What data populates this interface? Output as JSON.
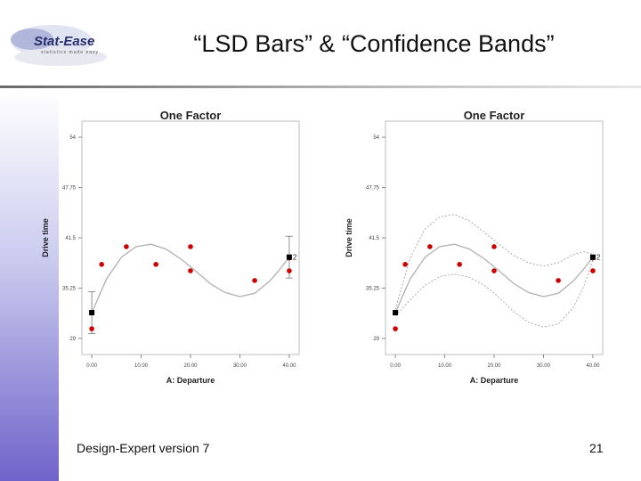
{
  "slide": {
    "title": "“LSD Bars” & “Confidence Bands”",
    "footer": "Design-Expert version 7",
    "page_number": "21"
  },
  "logo": {
    "wordmark": "Stat-Ease",
    "tagline": "statistics made easy"
  },
  "colors": {
    "sidebar_bottom": "#6f63c9",
    "point": "#cc0000",
    "fit_line": "#b0b0b0",
    "band": "#999999"
  },
  "chart_data": [
    {
      "type": "scatter",
      "title": "One Factor",
      "xlabel": "A: Departure",
      "ylabel": "Drive time",
      "xlim": [
        -2,
        42
      ],
      "ylim": [
        27,
        56
      ],
      "xticks": [
        0,
        10,
        20,
        30,
        40
      ],
      "xtick_labels": [
        "0.00",
        "10.00",
        "20.00",
        "30.00",
        "40.00"
      ],
      "yticks": [
        29,
        35.25,
        41.5,
        47.75,
        54
      ],
      "ytick_labels": [
        "29",
        "35.25",
        "41.5",
        "47.75",
        "54"
      ],
      "points": [
        {
          "x": 0,
          "y": 30.2
        },
        {
          "x": 2,
          "y": 38.2
        },
        {
          "x": 7,
          "y": 40.4
        },
        {
          "x": 13,
          "y": 38.2
        },
        {
          "x": 20,
          "y": 40.4
        },
        {
          "x": 20,
          "y": 37.4
        },
        {
          "x": 33,
          "y": 36.2
        },
        {
          "x": 40,
          "y": 39
        },
        {
          "x": 40,
          "y": 37.4
        }
      ],
      "fit_line": {
        "x": [
          0,
          3,
          6,
          9,
          12,
          15,
          18,
          21,
          24,
          27,
          30,
          33,
          36,
          38,
          40
        ],
        "y": [
          32.2,
          36.4,
          39.1,
          40.4,
          40.7,
          40.1,
          38.9,
          37.4,
          35.8,
          34.7,
          34.2,
          34.6,
          36.1,
          37.5,
          39.1
        ]
      },
      "markers": [
        {
          "x": 0,
          "y": 32.2,
          "label": ""
        },
        {
          "x": 40,
          "y": 39.1,
          "label": "2"
        }
      ],
      "lsd_bars": [
        {
          "x": 0,
          "low": 29.6,
          "high": 34.8
        },
        {
          "x": 40,
          "low": 36.5,
          "high": 41.7
        }
      ],
      "confidence_bands": null
    },
    {
      "type": "scatter",
      "title": "One Factor",
      "xlabel": "A: Departure",
      "ylabel": "Drive time",
      "xlim": [
        -2,
        42
      ],
      "ylim": [
        27,
        56
      ],
      "xticks": [
        0,
        10,
        20,
        30,
        40
      ],
      "xtick_labels": [
        "0.00",
        "10.00",
        "20.00",
        "30.00",
        "40.00"
      ],
      "yticks": [
        29,
        35.25,
        41.5,
        47.75,
        54
      ],
      "ytick_labels": [
        "29",
        "35.25",
        "41.5",
        "47.75",
        "54"
      ],
      "points": [
        {
          "x": 0,
          "y": 30.2
        },
        {
          "x": 2,
          "y": 38.2
        },
        {
          "x": 7,
          "y": 40.4
        },
        {
          "x": 13,
          "y": 38.2
        },
        {
          "x": 20,
          "y": 40.4
        },
        {
          "x": 20,
          "y": 37.4
        },
        {
          "x": 33,
          "y": 36.2
        },
        {
          "x": 40,
          "y": 39
        },
        {
          "x": 40,
          "y": 37.4
        }
      ],
      "fit_line": {
        "x": [
          0,
          3,
          6,
          9,
          12,
          15,
          18,
          21,
          24,
          27,
          30,
          33,
          36,
          38,
          40
        ],
        "y": [
          32.2,
          36.4,
          39.1,
          40.4,
          40.7,
          40.1,
          38.9,
          37.4,
          35.8,
          34.7,
          34.2,
          34.6,
          36.1,
          37.5,
          39.1
        ]
      },
      "markers": [
        {
          "x": 0,
          "y": 32.2,
          "label": ""
        },
        {
          "x": 40,
          "y": 39.1,
          "label": "2"
        }
      ],
      "lsd_bars": null,
      "confidence_bands": {
        "x": [
          0,
          3,
          6,
          9,
          12,
          15,
          18,
          21,
          24,
          27,
          30,
          33,
          36,
          38,
          40
        ],
        "upper": [
          32.6,
          39.0,
          42.6,
          44.1,
          44.4,
          43.6,
          42.2,
          40.7,
          39.3,
          38.4,
          38.0,
          38.4,
          39.4,
          39.8,
          39.5
        ],
        "lower": [
          31.8,
          33.8,
          35.6,
          36.7,
          37.0,
          36.6,
          35.6,
          34.1,
          32.3,
          31.0,
          30.4,
          30.8,
          32.8,
          35.2,
          38.7
        ]
      }
    }
  ]
}
